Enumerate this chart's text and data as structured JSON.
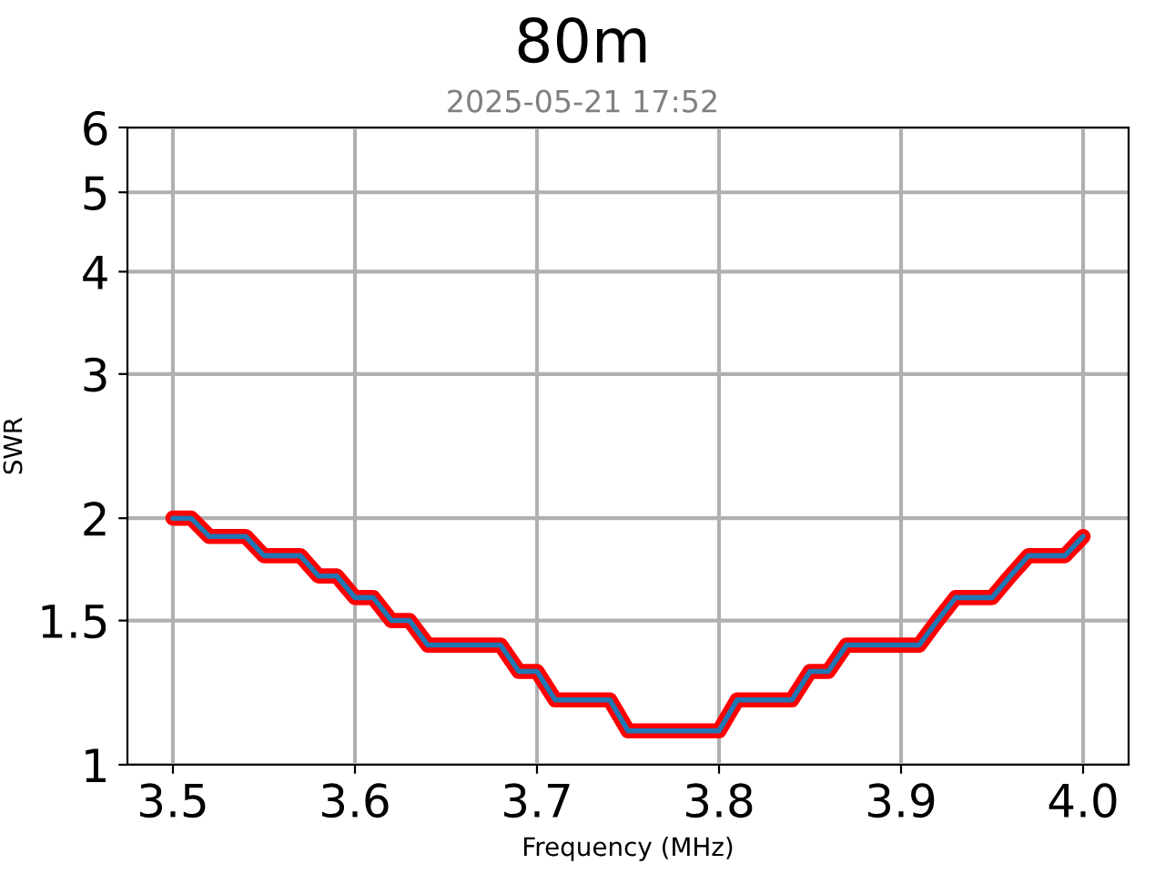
{
  "chart_data": {
    "type": "line",
    "title": "80m",
    "subtitle": "2025-05-21 17:52",
    "xlabel": "Frequency (MHz)",
    "ylabel": "SWR",
    "x": [
      3.5,
      3.51,
      3.52,
      3.53,
      3.54,
      3.55,
      3.56,
      3.57,
      3.58,
      3.59,
      3.6,
      3.61,
      3.62,
      3.63,
      3.64,
      3.65,
      3.66,
      3.67,
      3.68,
      3.69,
      3.7,
      3.71,
      3.72,
      3.73,
      3.74,
      3.75,
      3.76,
      3.77,
      3.78,
      3.79,
      3.8,
      3.81,
      3.82,
      3.83,
      3.84,
      3.85,
      3.86,
      3.87,
      3.88,
      3.89,
      3.9,
      3.91,
      3.92,
      3.93,
      3.94,
      3.95,
      3.96,
      3.97,
      3.98,
      3.99,
      4.0
    ],
    "series": [
      {
        "color": "#ff0000",
        "values": [
          2.0,
          2.0,
          1.9,
          1.9,
          1.9,
          1.8,
          1.8,
          1.8,
          1.7,
          1.7,
          1.6,
          1.6,
          1.5,
          1.5,
          1.4,
          1.4,
          1.4,
          1.4,
          1.4,
          1.3,
          1.3,
          1.2,
          1.2,
          1.2,
          1.2,
          1.1,
          1.1,
          1.1,
          1.1,
          1.1,
          1.1,
          1.2,
          1.2,
          1.2,
          1.2,
          1.3,
          1.3,
          1.4,
          1.4,
          1.4,
          1.4,
          1.4,
          1.5,
          1.6,
          1.6,
          1.6,
          1.7,
          1.8,
          1.8,
          1.8,
          1.9
        ]
      },
      {
        "color": "#1f77b4",
        "values": [
          2.0,
          2.0,
          1.9,
          1.9,
          1.9,
          1.8,
          1.8,
          1.8,
          1.7,
          1.7,
          1.6,
          1.6,
          1.5,
          1.5,
          1.4,
          1.4,
          1.4,
          1.4,
          1.4,
          1.3,
          1.3,
          1.2,
          1.2,
          1.2,
          1.2,
          1.1,
          1.1,
          1.1,
          1.1,
          1.1,
          1.1,
          1.2,
          1.2,
          1.2,
          1.2,
          1.3,
          1.3,
          1.4,
          1.4,
          1.4,
          1.4,
          1.4,
          1.5,
          1.6,
          1.6,
          1.6,
          1.7,
          1.8,
          1.8,
          1.8,
          1.9
        ]
      }
    ],
    "log": true,
    "xlim": [
      3.475,
      4.025
    ],
    "ylim": [
      1,
      6
    ],
    "xticks": [
      3.5,
      3.6,
      3.7,
      3.8,
      3.9,
      {
        "value": 4,
        "label": "4.0"
      }
    ],
    "yticks": [
      1,
      1.5,
      2,
      3,
      4,
      5,
      6
    ],
    "grid": true,
    "marker": "none",
    "line_style": "solid"
  }
}
